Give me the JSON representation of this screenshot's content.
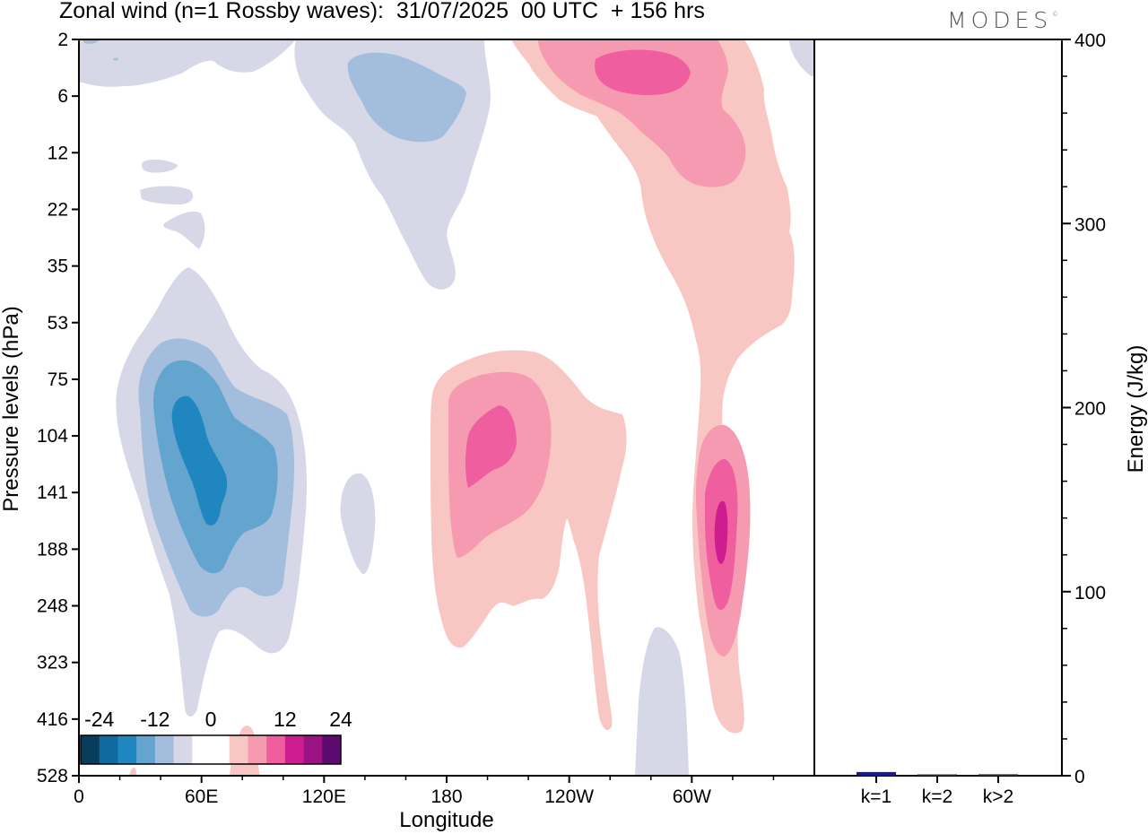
{
  "title": "Zonal wind (n=1 Rossby waves):  31/07/2025  00 UTC  + 156 hrs",
  "logo": "MODES",
  "chart_data": [
    {
      "type": "contour",
      "xlabel": "Longitude",
      "ylabel": "Pressure levels (hPa)",
      "xticks": [
        "0",
        "60E",
        "120E",
        "180",
        "120W",
        "60W"
      ],
      "yticks": [
        "2",
        "6",
        "12",
        "22",
        "35",
        "53",
        "75",
        "104",
        "141",
        "188",
        "248",
        "323",
        "416",
        "528"
      ],
      "colorbar": {
        "tick_labels": [
          "-24",
          "-12",
          "0",
          "12",
          "24"
        ],
        "levels": [
          -24,
          -20,
          -16,
          -12,
          -8,
          -4,
          0,
          4,
          8,
          12,
          16,
          20,
          24
        ],
        "colors": [
          "#0a3c5c",
          "#0f6aa0",
          "#1f86c0",
          "#64a5cf",
          "#a3bddc",
          "#d6d8e8",
          "#ffffff",
          "#ffffff",
          "#f9c7c3",
          "#f69ab2",
          "#ef5f9f",
          "#cd1d8e",
          "#9b1283",
          "#5d0a6e"
        ]
      },
      "features": [
        {
          "sign": "negative",
          "min_value": -20,
          "longitude": "60E",
          "pressure_hPa": 141
        },
        {
          "sign": "negative",
          "min_value": -12,
          "longitude": "120E-160E",
          "pressure_hPa": 6
        },
        {
          "sign": "positive",
          "max_value": 16,
          "longitude": "160W",
          "pressure_hPa": 104
        },
        {
          "sign": "positive",
          "max_value": 16,
          "longitude": "100W",
          "pressure_hPa": 2
        },
        {
          "sign": "positive",
          "max_value": 20,
          "longitude": "45W",
          "pressure_hPa": 141
        }
      ]
    },
    {
      "type": "bar",
      "ylabel": "Energy (J/kg)",
      "ylim": [
        0,
        400
      ],
      "yticks": [
        "0",
        "100",
        "200",
        "300",
        "400"
      ],
      "categories": [
        "k=1",
        "k=2",
        "k>2"
      ],
      "values": [
        2,
        0.3,
        0.8
      ],
      "colors": [
        "#1a1a8c",
        "#333333",
        "#333333"
      ]
    }
  ]
}
